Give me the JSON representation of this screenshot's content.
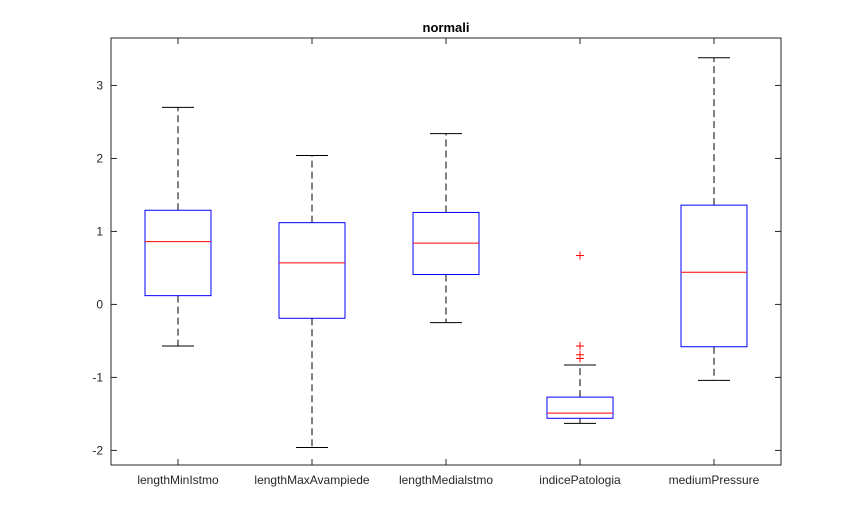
{
  "chart_data": {
    "type": "boxplot",
    "title": "normali",
    "xlabel": "",
    "ylabel": "",
    "ylim": [
      -2.2,
      3.65
    ],
    "yticks": [
      -2,
      -1,
      0,
      1,
      2,
      3
    ],
    "grid": false,
    "categories": [
      "lengthMinIstmo",
      "lengthMaxAvampiede",
      "lengthMedialstmo",
      "indicePatologia",
      "mediumPressure"
    ],
    "boxes": [
      {
        "category": "lengthMinIstmo",
        "whisker_low": -0.57,
        "q1": 0.12,
        "median": 0.86,
        "q3": 1.29,
        "whisker_high": 2.7,
        "outliers": []
      },
      {
        "category": "lengthMaxAvampiede",
        "whisker_low": -1.96,
        "q1": -0.19,
        "median": 0.57,
        "q3": 1.12,
        "whisker_high": 2.04,
        "outliers": []
      },
      {
        "category": "lengthMedialstmo",
        "whisker_low": -0.25,
        "q1": 0.41,
        "median": 0.84,
        "q3": 1.26,
        "whisker_high": 2.34,
        "outliers": []
      },
      {
        "category": "indicePatologia",
        "whisker_low": -1.63,
        "q1": -1.56,
        "median": -1.49,
        "q3": -1.27,
        "whisker_high": -0.83,
        "outliers": [
          0.67,
          -0.57,
          -0.69,
          -0.74
        ]
      },
      {
        "category": "mediumPressure",
        "whisker_low": -1.04,
        "q1": -0.58,
        "median": 0.44,
        "q3": 1.36,
        "whisker_high": 3.38,
        "outliers": []
      }
    ],
    "colors": {
      "box": "#0000ff",
      "median": "#ff0000",
      "whisker": "#000000",
      "outlier": "#ff0000",
      "axis": "#262626"
    }
  }
}
